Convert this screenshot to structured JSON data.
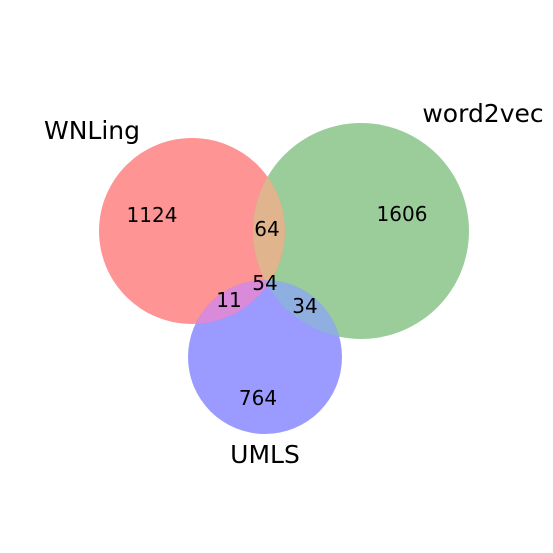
{
  "venn": {
    "sets": [
      {
        "key": "wnling",
        "label": "WNLing",
        "color": "#ff6666"
      },
      {
        "key": "word2vec",
        "label": "word2vec",
        "color": "#66b266"
      },
      {
        "key": "umls",
        "label": "UMLS",
        "color": "#6666ff"
      }
    ],
    "regions": {
      "wnling_only": "1124",
      "word2vec_only": "1606",
      "umls_only": "764",
      "wnling_word2vec": "64",
      "wnling_umls": "11",
      "word2vec_umls": "34",
      "all_three": "54"
    }
  }
}
